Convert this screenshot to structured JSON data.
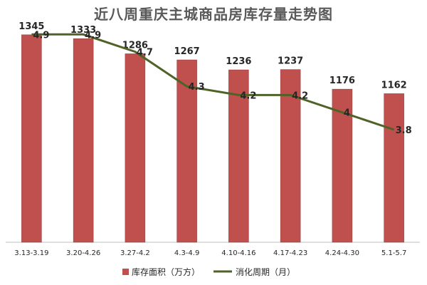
{
  "chart_data": {
    "type": "bar",
    "title": "近八周重庆主城商品房库存量走势图",
    "categories": [
      "3.13-3.19",
      "3.20-4.26",
      "3.27-4.2",
      "4.3-4.9",
      "4.10-4.16",
      "4.17-4.23",
      "4.24-4.30",
      "5.1-5.7"
    ],
    "series": [
      {
        "name": "库存面积（万方）",
        "type": "bar",
        "color": "#C0504D",
        "values": [
          1345,
          1333,
          1286,
          1267,
          1236,
          1237,
          1176,
          1162
        ]
      },
      {
        "name": "消化周期（月）",
        "type": "line",
        "color": "#4F6228",
        "values": [
          4.9,
          4.9,
          4.7,
          4.3,
          4.2,
          4.2,
          4.0,
          3.8
        ]
      }
    ],
    "value_labels": {
      "bar": [
        "1345",
        "1333",
        "1286",
        "1267",
        "1236",
        "1237",
        "1176",
        "1162"
      ],
      "line": [
        "4.9",
        "4.9",
        "4.7",
        "4.3",
        "4.2",
        "4.2",
        "4",
        "3.8"
      ]
    },
    "legend_position": "bottom",
    "grid": false,
    "bar_ylim": [
      700,
      1400
    ],
    "line_ylim": [
      2.5,
      5.1
    ]
  }
}
